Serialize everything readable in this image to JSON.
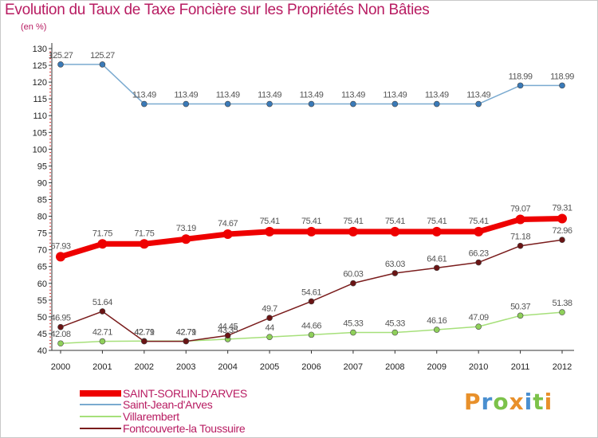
{
  "title": "Evolution du Taux de Taxe Foncière sur les Propriétés Non Bâties",
  "unit_label": "(en %)",
  "brand": {
    "letters": [
      "P",
      "r",
      "o",
      "x",
      "i",
      "t",
      "i"
    ],
    "colors": [
      "#e8902a",
      "#4a8fd0",
      "#7cc24a",
      "#e8902a",
      "#4a8fd0",
      "#7cc24a",
      "#e8902a"
    ]
  },
  "chart_data": {
    "type": "line",
    "title": "Evolution du Taux de Taxe Foncière sur les Propriétés Non Bâties",
    "ylabel": "(en %)",
    "xlabel": "",
    "ylim": [
      40,
      130
    ],
    "y_ticks": [
      "40",
      "45",
      "50",
      "55",
      "60",
      "65",
      "70",
      "75",
      "80",
      "85",
      "90",
      "95",
      "100",
      "105",
      "110",
      "115",
      "120",
      "125",
      "130"
    ],
    "y_tick_values": [
      40,
      45,
      50,
      55,
      60,
      65,
      70,
      75,
      80,
      85,
      90,
      95,
      100,
      105,
      110,
      115,
      120,
      125,
      130
    ],
    "x": [
      "2000",
      "2001",
      "2002",
      "2003",
      "2004",
      "2005",
      "2006",
      "2007",
      "2008",
      "2009",
      "2010",
      "2011",
      "2012"
    ],
    "grid": false,
    "legend_position": "bottom-left",
    "series": [
      {
        "name": "SAINT-SORLIN-D'ARVES",
        "color": "#ee0000",
        "marker": "#ee0000",
        "width": 7,
        "radius": 6,
        "values": [
          67.93,
          71.75,
          71.75,
          73.19,
          74.67,
          75.41,
          75.41,
          75.41,
          75.41,
          75.41,
          75.41,
          79.07,
          79.31
        ],
        "labels": [
          "67.93",
          "71.75",
          "71.75",
          "73.19",
          "74.67",
          "75.41",
          "75.41",
          "75.41",
          "75.41",
          "75.41",
          "75.41",
          "79.07",
          "79.31"
        ]
      },
      {
        "name": "Saint-Jean-d'Arves",
        "color": "#7aaad0",
        "marker": "#3a7ab8",
        "width": 1.5,
        "radius": 3.5,
        "values": [
          125.27,
          125.27,
          113.49,
          113.49,
          113.49,
          113.49,
          113.49,
          113.49,
          113.49,
          113.49,
          113.49,
          118.99,
          118.99
        ],
        "labels": [
          "125.27",
          "125.27",
          "113.49",
          "113.49",
          "113.49",
          "113.49",
          "113.49",
          "113.49",
          "113.49",
          "113.49",
          "113.49",
          "118.99",
          "118.99"
        ]
      },
      {
        "name": "Villarembert",
        "color": "#a6e07a",
        "marker": "#8fd05a",
        "width": 1.5,
        "radius": 3.5,
        "values": [
          42.08,
          42.71,
          42.79,
          42.79,
          43.35,
          44,
          44.66,
          45.33,
          45.33,
          46.16,
          47.09,
          50.37,
          51.38
        ],
        "labels": [
          "42.08",
          "42.71",
          "42.79",
          "42.79",
          "43.35",
          "44",
          "44.66",
          "45.33",
          "45.33",
          "46.16",
          "47.09",
          "50.37",
          "51.38"
        ]
      },
      {
        "name": "Fontcouverte-la Toussuire",
        "color": "#7a1c1c",
        "marker": "#6a1414",
        "width": 1.5,
        "radius": 3.5,
        "values": [
          46.95,
          51.64,
          42.71,
          42.71,
          44.45,
          49.7,
          54.61,
          60.03,
          63.03,
          64.61,
          66.23,
          71.18,
          72.96
        ],
        "labels": [
          "46.95",
          "51.64",
          "42.71",
          "42.71",
          "44.45",
          "49.7",
          "54.61",
          "60.03",
          "63.03",
          "64.61",
          "66.23",
          "71.18",
          "72.96"
        ]
      }
    ]
  }
}
